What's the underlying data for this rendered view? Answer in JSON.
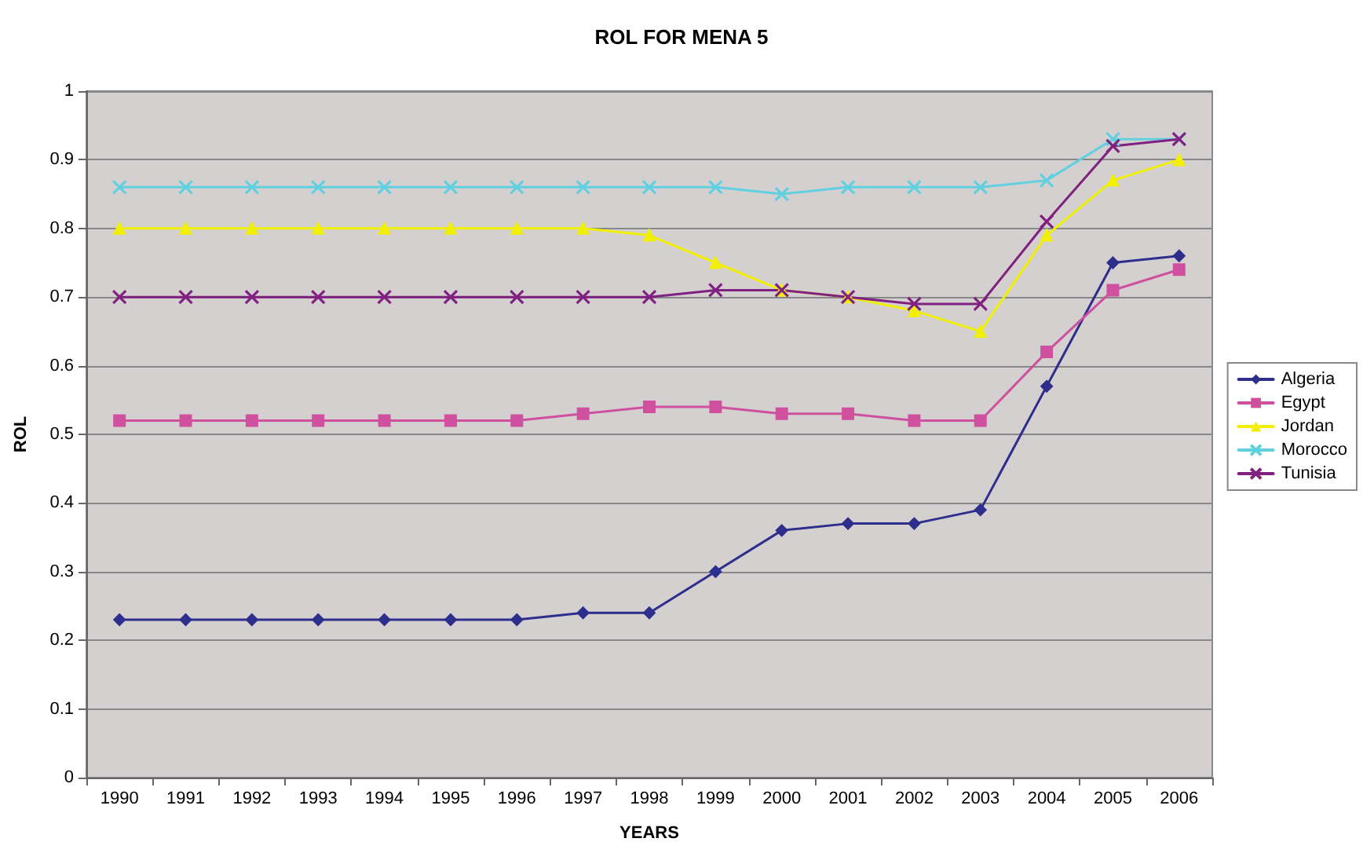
{
  "chart_data": {
    "type": "line",
    "title": "ROL FOR MENA 5",
    "xlabel": "YEARS",
    "ylabel": "ROL",
    "categories": [
      "1990",
      "1991",
      "1992",
      "1993",
      "1994",
      "1995",
      "1996",
      "1997",
      "1998",
      "1999",
      "2000",
      "2001",
      "2002",
      "2003",
      "2004",
      "2005",
      "2006"
    ],
    "series": [
      {
        "name": "Algeria",
        "color": "#2e2e8c",
        "marker": "diamond",
        "values": [
          0.23,
          0.23,
          0.23,
          0.23,
          0.23,
          0.23,
          0.23,
          0.24,
          0.24,
          0.3,
          0.36,
          0.37,
          0.37,
          0.39,
          0.57,
          0.75,
          0.76
        ]
      },
      {
        "name": "Egypt",
        "color": "#d050a0",
        "marker": "square",
        "values": [
          0.52,
          0.52,
          0.52,
          0.52,
          0.52,
          0.52,
          0.52,
          0.53,
          0.54,
          0.54,
          0.53,
          0.53,
          0.52,
          0.52,
          0.62,
          0.71,
          0.74
        ]
      },
      {
        "name": "Jordan",
        "color": "#f0f000",
        "marker": "triangle",
        "values": [
          0.8,
          0.8,
          0.8,
          0.8,
          0.8,
          0.8,
          0.8,
          0.8,
          0.79,
          0.75,
          0.71,
          0.7,
          0.68,
          0.65,
          0.79,
          0.87,
          0.9
        ]
      },
      {
        "name": "Morocco",
        "color": "#60d0e0",
        "marker": "cross",
        "values": [
          0.86,
          0.86,
          0.86,
          0.86,
          0.86,
          0.86,
          0.86,
          0.86,
          0.86,
          0.86,
          0.85,
          0.86,
          0.86,
          0.86,
          0.87,
          0.93,
          0.93
        ]
      },
      {
        "name": "Tunisia",
        "color": "#802080",
        "marker": "cross",
        "values": [
          0.7,
          0.7,
          0.7,
          0.7,
          0.7,
          0.7,
          0.7,
          0.7,
          0.7,
          0.71,
          0.71,
          0.7,
          0.69,
          0.69,
          0.81,
          0.92,
          0.93
        ]
      }
    ],
    "ylim": [
      0,
      1
    ],
    "yticks": [
      0,
      0.1,
      0.2,
      0.3,
      0.4,
      0.5,
      0.6,
      0.7,
      0.8,
      0.9,
      1
    ],
    "grid": "y",
    "legend": "right",
    "line_style": "solid"
  }
}
